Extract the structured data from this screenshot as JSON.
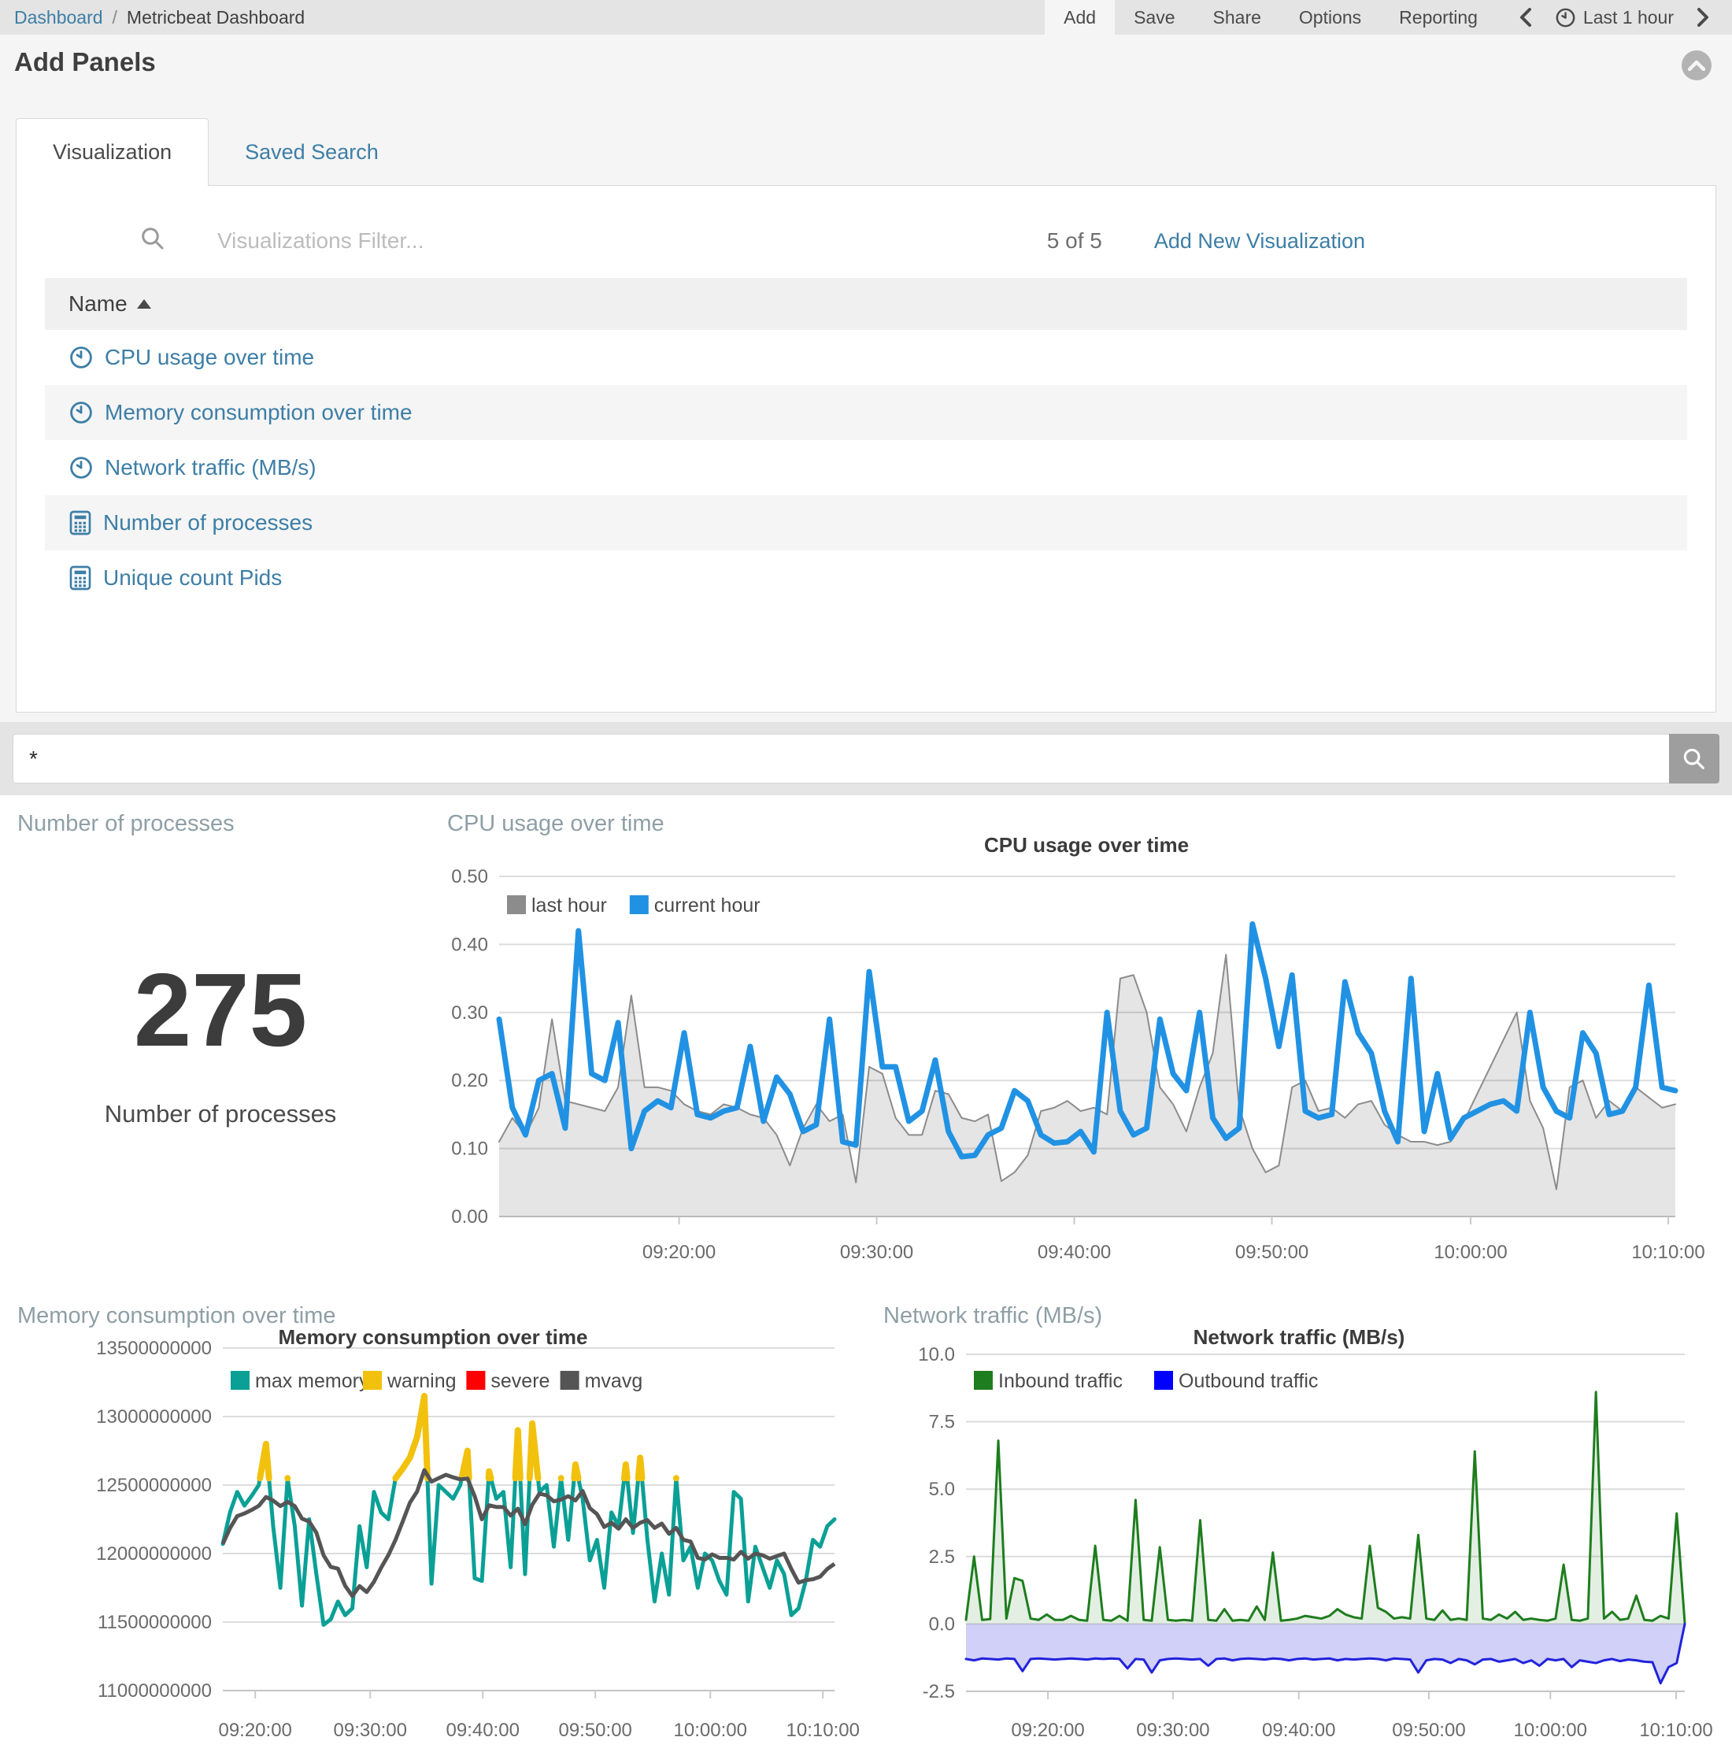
{
  "topbar": {
    "breadcrumb": {
      "root": "Dashboard",
      "separator": "/",
      "current": "Metricbeat Dashboard"
    },
    "menu_items": [
      "Add",
      "Save",
      "Share",
      "Options",
      "Reporting"
    ],
    "active_menu_item": "Add",
    "time_picker": {
      "label": "Last 1 hour"
    }
  },
  "add_panels": {
    "title": "Add Panels",
    "tabs": [
      {
        "label": "Visualization",
        "active": true
      },
      {
        "label": "Saved Search",
        "active": false
      }
    ],
    "filter": {
      "placeholder": "Visualizations Filter..."
    },
    "result_count": "5 of 5",
    "add_new_label": "Add New Visualization",
    "table": {
      "sort_column": "Name",
      "sort_direction": "asc",
      "rows": [
        {
          "label": "CPU usage over time",
          "icon": "timeseries-icon"
        },
        {
          "label": "Memory consumption over time",
          "icon": "timeseries-icon"
        },
        {
          "label": "Network traffic (MB/s)",
          "icon": "timeseries-icon"
        },
        {
          "label": "Number of processes",
          "icon": "metric-icon"
        },
        {
          "label": "Unique count Pids",
          "icon": "metric-icon"
        }
      ]
    }
  },
  "query_bar": {
    "value": "*"
  },
  "panels": {
    "metric": {
      "title": "Number of processes"
    },
    "cpu": {
      "title": "CPU usage over time"
    },
    "memory": {
      "title": "Memory consumption over time"
    },
    "network": {
      "title": "Network traffic (MB/s)"
    }
  },
  "chart_data": [
    {
      "id": "metric",
      "type": "metric",
      "value": "275",
      "label": "Number of processes"
    },
    {
      "id": "cpu",
      "type": "line",
      "title": "CPU usage over time",
      "xlabel": "",
      "ylabel": "",
      "ylim": [
        0,
        0.5
      ],
      "grid": true,
      "legend_position": "top-left",
      "y_ticks": [
        {
          "v": 0.0,
          "label": "0.00"
        },
        {
          "v": 0.1,
          "label": "0.10"
        },
        {
          "v": 0.2,
          "label": "0.20"
        },
        {
          "v": 0.3,
          "label": "0.30"
        },
        {
          "v": 0.4,
          "label": "0.40"
        },
        {
          "v": 0.5,
          "label": "0.50"
        }
      ],
      "x_ticks": [
        {
          "f": 0.153,
          "label": "09:20:00"
        },
        {
          "f": 0.321,
          "label": "09:30:00"
        },
        {
          "f": 0.489,
          "label": "09:40:00"
        },
        {
          "f": 0.657,
          "label": "09:50:00"
        },
        {
          "f": 0.826,
          "label": "10:00:00"
        },
        {
          "f": 0.994,
          "label": "10:10:00"
        }
      ],
      "series": [
        {
          "name": "last hour",
          "color": "#8c8c8c",
          "render": "area",
          "fill": "rgba(0,0,0,0.10)",
          "stroke_width": 2,
          "values": [
            0.11,
            0.145,
            0.12,
            0.16,
            0.29,
            0.17,
            0.165,
            0.16,
            0.155,
            0.19,
            0.325,
            0.19,
            0.19,
            0.185,
            0.165,
            0.155,
            0.15,
            0.165,
            0.16,
            0.15,
            0.145,
            0.12,
            0.075,
            0.13,
            0.165,
            0.14,
            0.15,
            0.05,
            0.22,
            0.21,
            0.145,
            0.12,
            0.12,
            0.185,
            0.18,
            0.145,
            0.14,
            0.15,
            0.052,
            0.065,
            0.09,
            0.155,
            0.16,
            0.17,
            0.155,
            0.16,
            0.15,
            0.35,
            0.355,
            0.3,
            0.19,
            0.165,
            0.125,
            0.19,
            0.24,
            0.385,
            0.16,
            0.1,
            0.065,
            0.075,
            0.19,
            0.2,
            0.155,
            0.16,
            0.145,
            0.165,
            0.17,
            0.135,
            0.12,
            0.11,
            0.11,
            0.105,
            0.11,
            0.14,
            0.18,
            0.22,
            0.26,
            0.3,
            0.17,
            0.13,
            0.04,
            0.19,
            0.2,
            0.145,
            0.17,
            0.155,
            0.19,
            0.175,
            0.16,
            0.165
          ]
        },
        {
          "name": "current hour",
          "color": "#2192e3",
          "render": "line",
          "stroke_width": 7,
          "values": [
            0.29,
            0.16,
            0.12,
            0.2,
            0.21,
            0.13,
            0.42,
            0.21,
            0.2,
            0.285,
            0.1,
            0.155,
            0.17,
            0.16,
            0.27,
            0.15,
            0.145,
            0.155,
            0.16,
            0.25,
            0.14,
            0.205,
            0.18,
            0.125,
            0.135,
            0.29,
            0.11,
            0.105,
            0.36,
            0.22,
            0.22,
            0.14,
            0.155,
            0.23,
            0.125,
            0.088,
            0.09,
            0.12,
            0.13,
            0.185,
            0.17,
            0.12,
            0.108,
            0.11,
            0.125,
            0.095,
            0.3,
            0.155,
            0.12,
            0.13,
            0.29,
            0.21,
            0.185,
            0.3,
            0.145,
            0.115,
            0.13,
            0.43,
            0.35,
            0.25,
            0.355,
            0.155,
            0.145,
            0.15,
            0.345,
            0.27,
            0.24,
            0.155,
            0.11,
            0.35,
            0.125,
            0.21,
            0.115,
            0.145,
            0.155,
            0.165,
            0.17,
            0.155,
            0.3,
            0.19,
            0.155,
            0.145,
            0.27,
            0.24,
            0.15,
            0.155,
            0.19,
            0.34,
            0.19,
            0.185
          ]
        }
      ]
    },
    {
      "id": "memory",
      "type": "line",
      "title": "Memory consumption over time",
      "xlabel": "",
      "ylabel": "",
      "ylim": [
        11,
        13.5
      ],
      "y_multiplier": 1000000000,
      "grid": true,
      "legend_position": "top-left",
      "y_ticks": [
        {
          "v": 11.0,
          "label": "11000000000"
        },
        {
          "v": 11.5,
          "label": "11500000000"
        },
        {
          "v": 12.0,
          "label": "12000000000"
        },
        {
          "v": 12.5,
          "label": "12500000000"
        },
        {
          "v": 13.0,
          "label": "13000000000"
        },
        {
          "v": 13.5,
          "label": "13500000000"
        }
      ],
      "x_ticks": [
        {
          "f": 0.053,
          "label": "09:20:00"
        },
        {
          "f": 0.241,
          "label": "09:30:00"
        },
        {
          "f": 0.425,
          "label": "09:40:00"
        },
        {
          "f": 0.609,
          "label": "09:50:00"
        },
        {
          "f": 0.797,
          "label": "10:00:00"
        },
        {
          "f": 0.981,
          "label": "10:10:00"
        }
      ],
      "series": [
        {
          "name": "max memory",
          "color": "#0aa096",
          "render": "line",
          "stroke_width": 5,
          "values": [
            12.07,
            12.3,
            12.45,
            12.35,
            12.42,
            12.5,
            12.8,
            12.2,
            11.75,
            12.55,
            12.2,
            11.62,
            12.25,
            11.85,
            11.48,
            11.52,
            11.65,
            11.55,
            11.6,
            12.2,
            11.9,
            12.45,
            12.3,
            12.25,
            12.55,
            12.62,
            12.7,
            12.85,
            13.15,
            11.78,
            12.5,
            12.45,
            12.4,
            12.5,
            12.75,
            11.82,
            11.8,
            12.6,
            12.4,
            12.45,
            11.9,
            12.9,
            11.85,
            12.95,
            12.45,
            12.5,
            12.05,
            12.55,
            12.1,
            12.65,
            12.4,
            11.95,
            12.1,
            11.75,
            12.3,
            12.2,
            12.65,
            12.15,
            12.7,
            12.1,
            11.65,
            12.0,
            11.7,
            12.55,
            11.95,
            12.05,
            11.75,
            12.0,
            11.95,
            11.8,
            11.7,
            12.45,
            12.4,
            11.65,
            12.05,
            11.9,
            11.75,
            11.95,
            11.85,
            11.55,
            11.6,
            11.8,
            12.1,
            12.05,
            12.2,
            12.25
          ]
        },
        {
          "name": "warning",
          "color": "#f2c10e",
          "render": "threshold-overlay",
          "of_series": 0,
          "threshold": 12.55,
          "stroke_width": 8
        },
        {
          "name": "severe",
          "color": "#ff0000",
          "render": "threshold-overlay",
          "of_series": 0,
          "threshold": 13.4,
          "stroke_width": 8
        },
        {
          "name": "mvavg",
          "color": "#555555",
          "render": "moving-average",
          "of_series": 0,
          "window": 8,
          "stroke_width": 5
        }
      ]
    },
    {
      "id": "network",
      "type": "area",
      "title": "Network traffic (MB/s)",
      "xlabel": "",
      "ylabel": "",
      "ylim": [
        -2.5,
        10
      ],
      "grid": true,
      "legend_position": "top-left",
      "y_ticks": [
        {
          "v": -2.5,
          "label": "-2.5"
        },
        {
          "v": 0.0,
          "label": "0.0"
        },
        {
          "v": 2.5,
          "label": "2.5"
        },
        {
          "v": 5.0,
          "label": "5.0"
        },
        {
          "v": 7.5,
          "label": "7.5"
        },
        {
          "v": 10.0,
          "label": "10.0"
        }
      ],
      "x_ticks": [
        {
          "f": 0.114,
          "label": "09:20:00"
        },
        {
          "f": 0.288,
          "label": "09:30:00"
        },
        {
          "f": 0.463,
          "label": "09:40:00"
        },
        {
          "f": 0.644,
          "label": "09:50:00"
        },
        {
          "f": 0.813,
          "label": "10:00:00"
        },
        {
          "f": 0.988,
          "label": "10:10:00"
        }
      ],
      "series": [
        {
          "name": "Inbound traffic",
          "color": "#1e7d1e",
          "legend_color": "#1e7d1e",
          "render": "area",
          "fill": "rgba(30,125,30,0.12)",
          "stroke_width": 3,
          "values": [
            0.15,
            2.5,
            0.15,
            0.18,
            6.8,
            0.2,
            1.7,
            1.6,
            0.2,
            0.15,
            0.35,
            0.15,
            0.15,
            0.3,
            0.15,
            0.12,
            2.9,
            0.15,
            0.12,
            0.3,
            0.12,
            4.6,
            0.15,
            0.12,
            2.85,
            0.15,
            0.12,
            0.15,
            0.12,
            3.85,
            0.15,
            0.12,
            0.55,
            0.12,
            0.15,
            0.12,
            0.65,
            0.15,
            2.65,
            0.12,
            0.15,
            0.2,
            0.3,
            0.25,
            0.2,
            0.3,
            0.55,
            0.35,
            0.25,
            0.2,
            2.9,
            0.6,
            0.45,
            0.2,
            0.25,
            0.2,
            3.3,
            0.2,
            0.15,
            0.5,
            0.15,
            0.2,
            0.15,
            6.4,
            0.2,
            0.15,
            0.35,
            0.2,
            0.45,
            0.15,
            0.2,
            0.15,
            0.12,
            0.2,
            2.2,
            0.15,
            0.12,
            0.2,
            8.6,
            0.2,
            0.45,
            0.15,
            0.2,
            1.05,
            0.15,
            0.12,
            0.3,
            0.2,
            4.1,
            0.05
          ]
        },
        {
          "name": "Outbound traffic",
          "color": "#2222dd",
          "legend_color": "#0000ff",
          "render": "area",
          "fill": "rgba(80,80,230,0.27)",
          "stroke_width": 3,
          "values": [
            -1.3,
            -1.35,
            -1.28,
            -1.3,
            -1.32,
            -1.28,
            -1.3,
            -1.75,
            -1.3,
            -1.28,
            -1.3,
            -1.32,
            -1.3,
            -1.28,
            -1.3,
            -1.32,
            -1.28,
            -1.3,
            -1.28,
            -1.3,
            -1.65,
            -1.3,
            -1.32,
            -1.8,
            -1.35,
            -1.3,
            -1.28,
            -1.3,
            -1.32,
            -1.3,
            -1.55,
            -1.3,
            -1.28,
            -1.35,
            -1.3,
            -1.28,
            -1.3,
            -1.32,
            -1.28,
            -1.3,
            -1.35,
            -1.3,
            -1.28,
            -1.32,
            -1.3,
            -1.28,
            -1.35,
            -1.3,
            -1.32,
            -1.3,
            -1.28,
            -1.3,
            -1.35,
            -1.28,
            -1.3,
            -1.32,
            -1.8,
            -1.35,
            -1.3,
            -1.32,
            -1.45,
            -1.3,
            -1.35,
            -1.5,
            -1.32,
            -1.3,
            -1.4,
            -1.35,
            -1.3,
            -1.45,
            -1.35,
            -1.55,
            -1.3,
            -1.35,
            -1.3,
            -1.6,
            -1.35,
            -1.4,
            -1.45,
            -1.35,
            -1.3,
            -1.38,
            -1.32,
            -1.35,
            -1.4,
            -1.42,
            -2.2,
            -1.6,
            -1.45,
            0.0
          ]
        }
      ]
    }
  ],
  "colors": {
    "link": "#3d7ea6",
    "topbar_bg": "#e4e4e4",
    "section_bg": "#f5f5f5",
    "panel_title": "#8e9fa6",
    "cpu_current": "#2192e3",
    "cpu_last": "#8c8c8c",
    "memory_max": "#0aa096",
    "memory_warning": "#f2c10e",
    "memory_severe": "#ff0000",
    "memory_mvavg": "#555555",
    "net_inbound": "#1e7d1e",
    "net_outbound": "#0000ff"
  }
}
